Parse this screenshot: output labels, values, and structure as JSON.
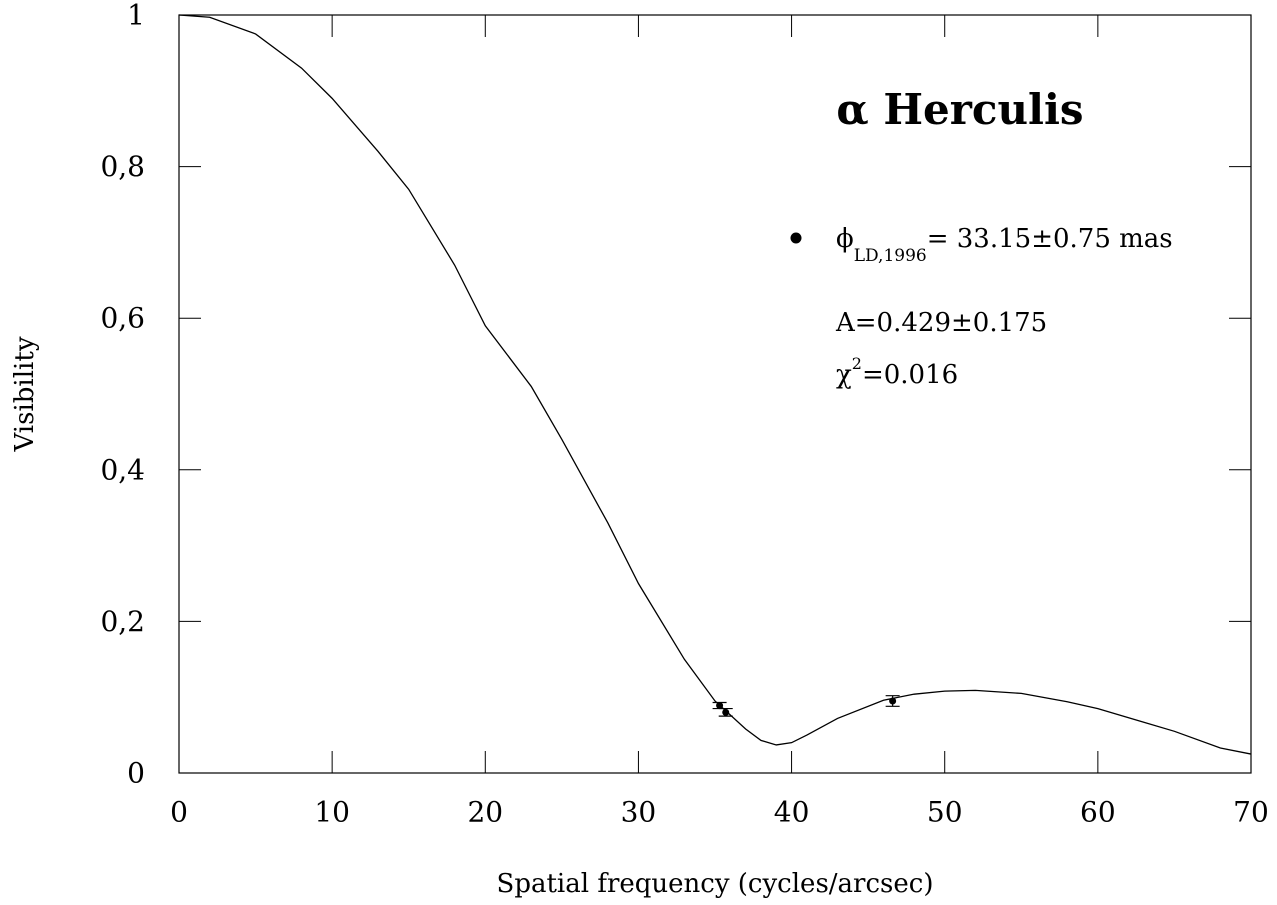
{
  "chart_data": {
    "type": "line",
    "title": "α Herculis",
    "title_color": "#1e6b1e",
    "xlabel": "Spatial frequency (cycles/arcsec)",
    "ylabel": "Visibility",
    "xlim": [
      0,
      70
    ],
    "ylim": [
      0,
      1
    ],
    "xticks": [
      0,
      10,
      20,
      30,
      40,
      50,
      60,
      70
    ],
    "yticks": [
      0,
      {
        "value": 0.2,
        "label": "0,2"
      },
      {
        "value": 0.4,
        "label": "0,4"
      },
      {
        "value": 0.6,
        "label": "0,6"
      },
      {
        "value": 0.8,
        "label": "0,8"
      },
      1
    ],
    "curve": {
      "color": "#000000",
      "x": [
        0,
        2,
        5,
        8,
        10,
        13,
        15,
        18,
        20,
        23,
        25,
        28,
        30,
        33,
        35,
        37,
        38,
        39,
        40,
        41,
        43,
        46,
        48,
        50,
        52,
        55,
        58,
        60,
        63,
        65,
        68,
        70
      ],
      "values": [
        1.0,
        0.997,
        0.975,
        0.93,
        0.89,
        0.82,
        0.77,
        0.67,
        0.59,
        0.51,
        0.44,
        0.33,
        0.25,
        0.15,
        0.095,
        0.058,
        0.043,
        0.037,
        0.04,
        0.05,
        0.072,
        0.096,
        0.104,
        0.108,
        0.109,
        0.105,
        0.094,
        0.085,
        0.067,
        0.055,
        0.033,
        0.025
      ]
    },
    "points": {
      "color": "#000000",
      "x": [
        35.3,
        35.7,
        46.6
      ],
      "values": [
        0.089,
        0.08,
        0.095
      ],
      "errors": [
        0.004,
        0.005,
        0.007
      ]
    },
    "legend": {
      "symbol": "ϕ",
      "subscript": "LD,1996",
      "text": "= 33.15±0.75 mas"
    },
    "annotations": [
      {
        "text": "A=0.429±0.175"
      },
      {
        "base": "χ",
        "sup": "2",
        "text": "=0.016"
      }
    ]
  }
}
